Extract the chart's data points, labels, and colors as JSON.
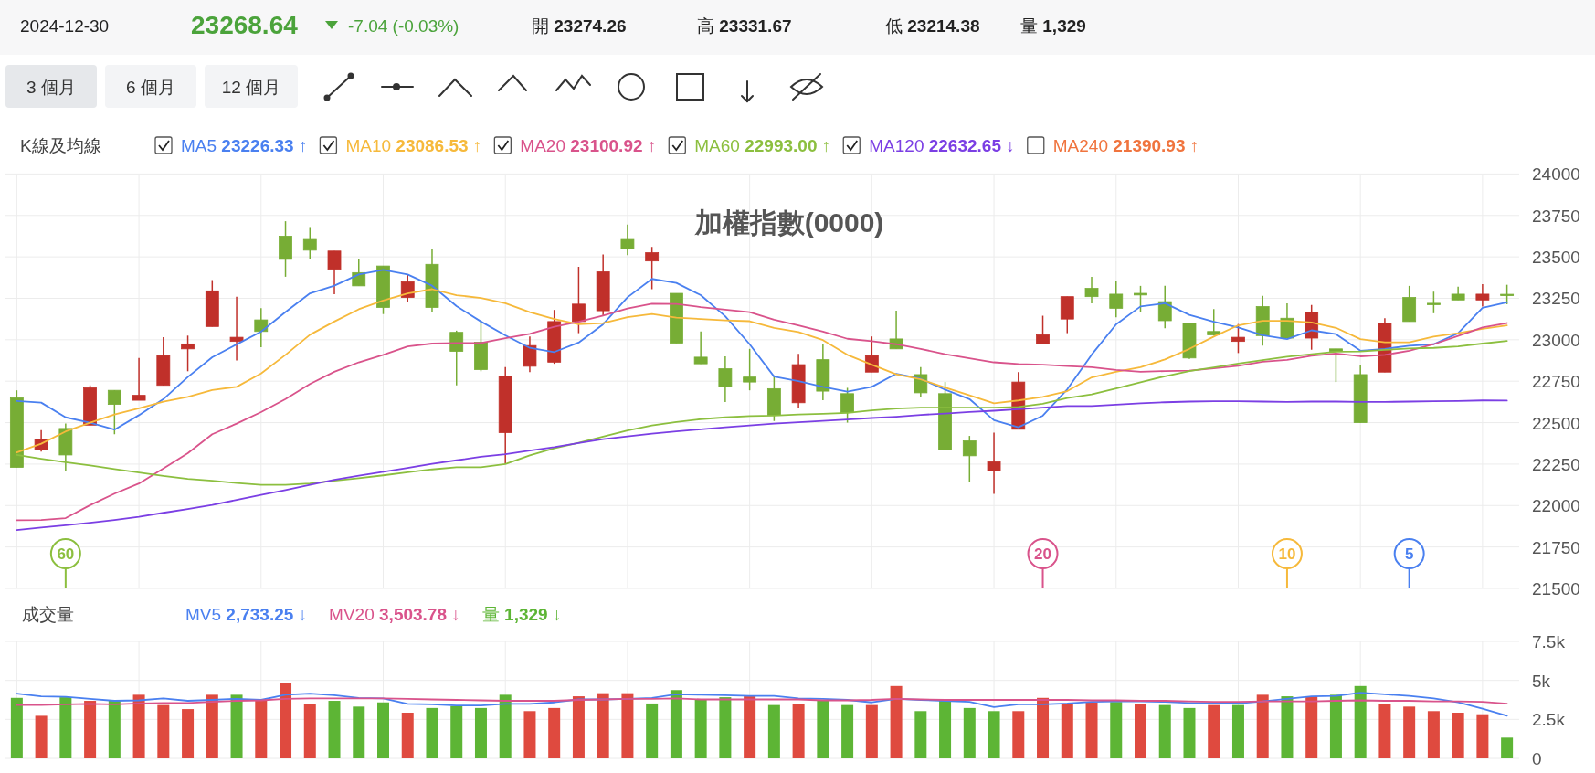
{
  "chart_data": [
    {
      "type": "other",
      "annotations": [
        "2024-12-30",
        "23268.64",
        "-7.04 (-0.03%)",
        "開 **23274.26**",
        "高 **23331.67**",
        "低 **23214.38**",
        "量 **1,329**",
        "3 個月",
        "6 個月",
        "12 個月"
      ]
    },
    {
      "type": "candlestick",
      "title": "加權指數(0000)",
      "legend_title": "K線及均線",
      "legend": "top",
      "grid": true,
      "categories": [
        null,
        null,
        null,
        null,
        null,
        null,
        null,
        null,
        null,
        null,
        null,
        null,
        null,
        null,
        null,
        null,
        null,
        null,
        null,
        null,
        null,
        null,
        null,
        null,
        null,
        null,
        null,
        null,
        null,
        null,
        null,
        null,
        null,
        null,
        null,
        null,
        null,
        null,
        null,
        null,
        null,
        null,
        null,
        null,
        null,
        null,
        null,
        null,
        null,
        null,
        null,
        null,
        null,
        null,
        null,
        null,
        null,
        null,
        null,
        null,
        null,
        null
      ],
      "ylim": [
        21500,
        24000
      ],
      "yticks": [
        21500,
        21750,
        22000,
        22250,
        22500,
        22750,
        23000,
        23250,
        23500,
        23750,
        24000
      ],
      "ohlc": [
        [
          22650,
          22695,
          22230,
          22230
        ],
        [
          22335,
          22455,
          22325,
          22400
        ],
        [
          22465,
          22495,
          22210,
          22305
        ],
        [
          22485,
          22725,
          22485,
          22710
        ],
        [
          22695,
          22695,
          22430,
          22610
        ],
        [
          22635,
          22890,
          22635,
          22665
        ],
        [
          22725,
          23015,
          22725,
          22905
        ],
        [
          22945,
          23025,
          22810,
          22975
        ],
        [
          23080,
          23360,
          23080,
          23295
        ],
        [
          22990,
          23260,
          22875,
          23015
        ],
        [
          23120,
          23190,
          22955,
          23050
        ],
        [
          23625,
          23715,
          23380,
          23485
        ],
        [
          23605,
          23680,
          23485,
          23540
        ],
        [
          23425,
          23535,
          23275,
          23535
        ],
        [
          23405,
          23485,
          23325,
          23325
        ],
        [
          23445,
          23445,
          23155,
          23195
        ],
        [
          23255,
          23390,
          23230,
          23350
        ],
        [
          23455,
          23545,
          23165,
          23195
        ],
        [
          23045,
          23055,
          22725,
          22930
        ],
        [
          22985,
          23115,
          22810,
          22820
        ],
        [
          22440,
          22835,
          22250,
          22780
        ],
        [
          22840,
          23020,
          22805,
          22965
        ],
        [
          22865,
          23180,
          22855,
          23110
        ],
        [
          23110,
          23440,
          23040,
          23215
        ],
        [
          23175,
          23515,
          23145,
          23410
        ],
        [
          23605,
          23695,
          23510,
          23550
        ],
        [
          23475,
          23560,
          23305,
          23525
        ],
        [
          23280,
          23280,
          22980,
          22980
        ],
        [
          22895,
          23050,
          22855,
          22855
        ],
        [
          22825,
          22900,
          22625,
          22715
        ],
        [
          22775,
          22945,
          22695,
          22745
        ],
        [
          22705,
          22785,
          22510,
          22545
        ],
        [
          22620,
          22915,
          22590,
          22850
        ],
        [
          22880,
          22975,
          22635,
          22690
        ],
        [
          22675,
          22710,
          22500,
          22560
        ],
        [
          22805,
          23020,
          22805,
          22905
        ],
        [
          23005,
          23175,
          22945,
          22945
        ],
        [
          22790,
          22835,
          22655,
          22680
        ],
        [
          22675,
          22745,
          22335,
          22335
        ],
        [
          22390,
          22420,
          22140,
          22300
        ],
        [
          22210,
          22440,
          22070,
          22265
        ],
        [
          22460,
          22805,
          22460,
          22745
        ],
        [
          22975,
          23145,
          22975,
          23030
        ],
        [
          23125,
          23260,
          23040,
          23260
        ],
        [
          23310,
          23380,
          23220,
          23260
        ],
        [
          23275,
          23355,
          23135,
          23190
        ],
        [
          23280,
          23325,
          23170,
          23270
        ],
        [
          23230,
          23325,
          23070,
          23115
        ],
        [
          23100,
          23100,
          22885,
          22890
        ],
        [
          23050,
          23185,
          23025,
          23030
        ],
        [
          22990,
          23095,
          22920,
          23015
        ],
        [
          23200,
          23265,
          22965,
          23025
        ],
        [
          23130,
          23220,
          23010,
          23010
        ],
        [
          23010,
          23210,
          22940,
          23165
        ],
        [
          22945,
          22945,
          22745,
          22930
        ],
        [
          22790,
          22845,
          22500,
          22500
        ],
        [
          22805,
          23130,
          22805,
          23100
        ],
        [
          23255,
          23325,
          23110,
          23110
        ],
        [
          23220,
          23290,
          23160,
          23215
        ],
        [
          23275,
          23320,
          23240,
          23240
        ],
        [
          23240,
          23335,
          23200,
          23275
        ],
        [
          23274.26,
          23331.67,
          23214.38,
          23268.64
        ]
      ],
      "colors": [
        "#77ad35",
        "#c0302a",
        "#77ad35",
        "#c0302a",
        "#77ad35",
        "#c0302a",
        "#c0302a",
        "#c0302a",
        "#c0302a",
        "#c0302a",
        "#77ad35",
        "#77ad35",
        "#77ad35",
        "#c0302a",
        "#77ad35",
        "#77ad35",
        "#c0302a",
        "#77ad35",
        "#77ad35",
        "#77ad35",
        "#c0302a",
        "#c0302a",
        "#c0302a",
        "#c0302a",
        "#c0302a",
        "#77ad35",
        "#c0302a",
        "#77ad35",
        "#77ad35",
        "#77ad35",
        "#77ad35",
        "#77ad35",
        "#c0302a",
        "#77ad35",
        "#77ad35",
        "#c0302a",
        "#77ad35",
        "#77ad35",
        "#77ad35",
        "#77ad35",
        "#c0302a",
        "#c0302a",
        "#c0302a",
        "#c0302a",
        "#77ad35",
        "#77ad35",
        "#77ad35",
        "#77ad35",
        "#77ad35",
        "#77ad35",
        "#c0302a",
        "#77ad35",
        "#77ad35",
        "#c0302a",
        "#77ad35",
        "#77ad35",
        "#c0302a",
        "#77ad35",
        "#77ad35",
        "#77ad35",
        "#c0302a",
        "#77ad35"
      ],
      "series": [
        {
          "name": "MA5 **23226.33** ↑",
          "type": "line",
          "color": "#4a80f0",
          "values": [
            22631,
            22621,
            22532,
            22500,
            22458,
            22545,
            22642,
            22775,
            22894,
            22972,
            23049,
            23167,
            23280,
            23326,
            23394,
            23422,
            23394,
            23326,
            23203,
            23110,
            23027,
            22951,
            22926,
            22983,
            23093,
            23256,
            23367,
            23343,
            23269,
            23142,
            22973,
            22778,
            22750,
            22716,
            22687,
            22716,
            22795,
            22765,
            22699,
            22642,
            22515,
            22472,
            22542,
            22701,
            22910,
            23093,
            23201,
            23220,
            23150,
            23108,
            23074,
            23027,
            23004,
            23057,
            23034,
            22934,
            22945,
            22964,
            22973,
            23040,
            23193,
            23226.33
          ]
        },
        {
          "name": "MA10 **23086.53** ↑",
          "type": "line",
          "color": "#f6b93b",
          "values": [
            22320,
            22373,
            22447,
            22500,
            22549,
            22587,
            22627,
            22655,
            22697,
            22716,
            22797,
            22909,
            23030,
            23110,
            23184,
            23237,
            23280,
            23305,
            23269,
            23252,
            23220,
            23167,
            23125,
            23093,
            23100,
            23136,
            23155,
            23134,
            23125,
            23117,
            23112,
            23072,
            23047,
            22998,
            22909,
            22850,
            22792,
            22761,
            22712,
            22665,
            22617,
            22634,
            22655,
            22690,
            22773,
            22807,
            22835,
            22881,
            22945,
            23019,
            23087,
            23114,
            23114,
            23104,
            23072,
            23004,
            22985,
            22985,
            23019,
            23040,
            23066,
            23086.53
          ]
        },
        {
          "name": "MA20 **23100.92** ↑",
          "type": "line",
          "color": "#d9538b",
          "values": [
            21911,
            21913,
            21924,
            22002,
            22072,
            22133,
            22223,
            22316,
            22430,
            22494,
            22564,
            22642,
            22733,
            22807,
            22864,
            22909,
            22960,
            22977,
            22981,
            22981,
            23009,
            23036,
            23078,
            23108,
            23146,
            23189,
            23218,
            23216,
            23197,
            23182,
            23167,
            23121,
            23087,
            23049,
            23006,
            22992,
            22973,
            22945,
            22913,
            22888,
            22864,
            22854,
            22850,
            22841,
            22835,
            22818,
            22807,
            22811,
            22814,
            22828,
            22843,
            22867,
            22879,
            22903,
            22917,
            22900,
            22909,
            22934,
            22973,
            23023,
            23074,
            23100.92
          ]
        },
        {
          "name": "MA60 **22993.00** ↑",
          "type": "line",
          "color": "#8cbf3f",
          "values": [
            22305,
            22282,
            22261,
            22242,
            22220,
            22199,
            22178,
            22161,
            22150,
            22136,
            22125,
            22125,
            22133,
            22150,
            22165,
            22182,
            22201,
            22218,
            22231,
            22231,
            22250,
            22303,
            22345,
            22379,
            22415,
            22453,
            22483,
            22504,
            22521,
            22532,
            22540,
            22542,
            22549,
            22553,
            22559,
            22574,
            22585,
            22591,
            22591,
            22591,
            22591,
            22595,
            22614,
            22648,
            22670,
            22706,
            22744,
            22780,
            22811,
            22833,
            22856,
            22877,
            22898,
            22913,
            22928,
            22930,
            22939,
            22947,
            22951,
            22960,
            22977,
            22993.0
          ]
        },
        {
          "name": "MA120 **22632.65** ↓",
          "type": "line",
          "color": "#7b3fe4",
          "values": [
            21852,
            21867,
            21881,
            21896,
            21913,
            21932,
            21956,
            21979,
            22004,
            22034,
            22064,
            22093,
            22125,
            22155,
            22180,
            22203,
            22227,
            22252,
            22273,
            22294,
            22309,
            22331,
            22352,
            22377,
            22400,
            22417,
            22434,
            22447,
            22460,
            22472,
            22483,
            22494,
            22502,
            22511,
            22519,
            22528,
            22536,
            22547,
            22555,
            22564,
            22572,
            22581,
            22591,
            22600,
            22600,
            22608,
            22617,
            22623,
            22627,
            22629,
            22629,
            22627,
            22625,
            22627,
            22627,
            22625,
            22625,
            22627,
            22629,
            22631,
            22634,
            22633
          ]
        }
      ],
      "annotations": [
        "60",
        "20",
        "10",
        "5",
        "MA240 **21390.93** ↑"
      ]
    },
    {
      "type": "bar",
      "title": "成交量",
      "legend": "top",
      "grid": true,
      "categories": [
        null,
        null,
        null,
        null,
        null,
        null,
        null,
        null,
        null,
        null,
        null,
        null,
        null,
        null,
        null,
        null,
        null,
        null,
        null,
        null,
        null,
        null,
        null,
        null,
        null,
        null,
        null,
        null,
        null,
        null,
        null,
        null,
        null,
        null,
        null,
        null,
        null,
        null,
        null,
        null,
        null,
        null,
        null,
        null,
        null,
        null,
        null,
        null,
        null,
        null,
        null,
        null,
        null,
        null,
        null,
        null,
        null,
        null,
        null,
        null,
        null,
        null
      ],
      "ylim": [
        0,
        7500
      ],
      "yticks": [
        0,
        {
          "value": 2500,
          "label": "2.5k"
        },
        {
          "value": 5000,
          "label": "5k"
        },
        {
          "value": 7500,
          "label": "7.5k"
        }
      ],
      "series": [
        {
          "name": "MV5 **2,733.25** ↓",
          "type": "line",
          "color": "#4a80f0",
          "values": [
            4150,
            3980,
            3950,
            3820,
            3690,
            3720,
            3850,
            3690,
            3750,
            3820,
            3750,
            4080,
            4150,
            4050,
            3880,
            3850,
            3490,
            3460,
            3390,
            3390,
            3490,
            3490,
            3590,
            3780,
            3780,
            3820,
            3880,
            4110,
            4080,
            4050,
            4010,
            4010,
            3850,
            3820,
            3750,
            3590,
            3820,
            3750,
            3690,
            3620,
            3290,
            3460,
            3460,
            3520,
            3620,
            3650,
            3650,
            3620,
            3550,
            3550,
            3520,
            3650,
            3820,
            3980,
            4010,
            4210,
            4110,
            4010,
            3850,
            3590,
            3190,
            2733.25
          ]
        },
        {
          "name": "MV20 **3,503.78** ↓",
          "type": "line",
          "color": "#d9538b",
          "values": [
            3420,
            3420,
            3460,
            3490,
            3460,
            3520,
            3550,
            3550,
            3620,
            3690,
            3720,
            3820,
            3850,
            3850,
            3850,
            3850,
            3820,
            3780,
            3750,
            3720,
            3690,
            3690,
            3690,
            3750,
            3780,
            3820,
            3820,
            3850,
            3780,
            3780,
            3780,
            3780,
            3780,
            3720,
            3720,
            3750,
            3820,
            3780,
            3750,
            3750,
            3750,
            3750,
            3750,
            3750,
            3720,
            3720,
            3690,
            3690,
            3650,
            3620,
            3620,
            3650,
            3650,
            3650,
            3690,
            3720,
            3690,
            3690,
            3650,
            3650,
            3620,
            3503.78
          ]
        },
        {
          "name": "量 **1,329** ↓",
          "type": "bar",
          "values": [
            3880,
            2730,
            3920,
            3690,
            3690,
            4080,
            3420,
            3160,
            4080,
            4080,
            3720,
            4840,
            3490,
            3690,
            3320,
            3590,
            2930,
            3230,
            3360,
            3230,
            4080,
            3030,
            3230,
            3980,
            4180,
            4180,
            3520,
            4380,
            3750,
            3920,
            3980,
            3420,
            3490,
            3720,
            3420,
            3420,
            4640,
            3030,
            3720,
            3230,
            3030,
            3030,
            3880,
            3490,
            3590,
            3620,
            3490,
            3420,
            3230,
            3420,
            3420,
            4080,
            3980,
            3980,
            4080,
            4640,
            3490,
            3320,
            3030,
            2930,
            2830,
            1329
          ],
          "colors": [
            "#5db535",
            "#df4a3f",
            "#5db535",
            "#df4a3f",
            "#5db535",
            "#df4a3f",
            "#df4a3f",
            "#df4a3f",
            "#df4a3f",
            "#5db535",
            "#df4a3f",
            "#df4a3f",
            "#df4a3f",
            "#5db535",
            "#5db535",
            "#5db535",
            "#df4a3f",
            "#5db535",
            "#5db535",
            "#5db535",
            "#5db535",
            "#df4a3f",
            "#df4a3f",
            "#df4a3f",
            "#df4a3f",
            "#df4a3f",
            "#5db535",
            "#5db535",
            "#5db535",
            "#5db535",
            "#df4a3f",
            "#5db535",
            "#df4a3f",
            "#5db535",
            "#5db535",
            "#df4a3f",
            "#df4a3f",
            "#5db535",
            "#5db535",
            "#5db535",
            "#5db535",
            "#df4a3f",
            "#df4a3f",
            "#df4a3f",
            "#df4a3f",
            "#5db535",
            "#df4a3f",
            "#5db535",
            "#5db535",
            "#df4a3f",
            "#5db535",
            "#df4a3f",
            "#5db535",
            "#df4a3f",
            "#5db535",
            "#5db535",
            "#df4a3f",
            "#df4a3f",
            "#df4a3f",
            "#df4a3f",
            "#df4a3f",
            "#5db535"
          ]
        }
      ]
    }
  ]
}
